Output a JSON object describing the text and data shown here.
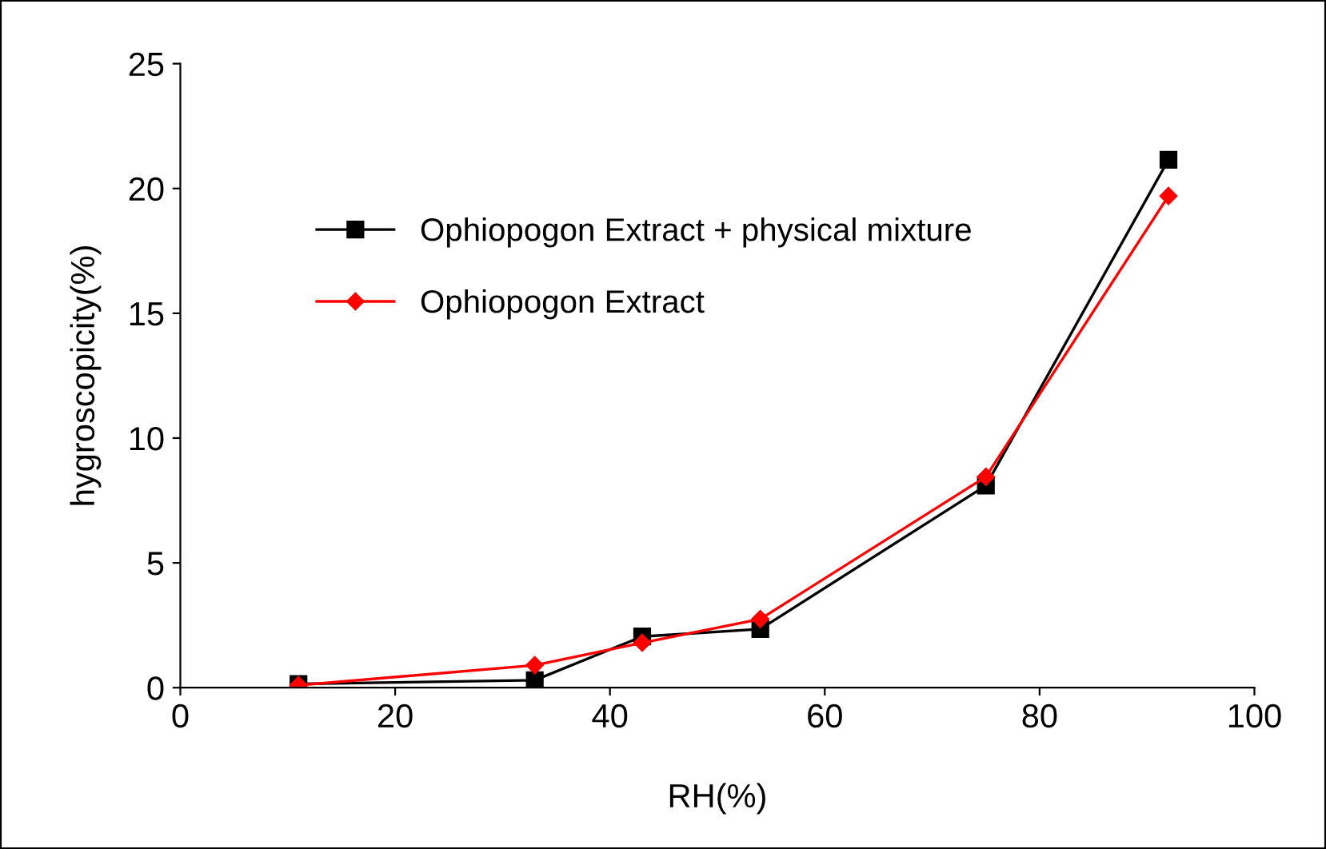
{
  "chart_data": {
    "type": "line",
    "xlabel": "RH(%)",
    "ylabel": "hygroscopicity(%)",
    "x": [
      11,
      33,
      43,
      54,
      75,
      92
    ],
    "series": [
      {
        "name": "Ophiopogon Extract + physical mixture",
        "color": "#000000",
        "marker": "square",
        "values": [
          0.15,
          0.3,
          2.05,
          2.35,
          8.1,
          21.15
        ]
      },
      {
        "name": "Ophiopogon Extract",
        "color": "#ff0000",
        "marker": "diamond",
        "values": [
          0.1,
          0.9,
          1.8,
          2.75,
          8.45,
          19.7
        ]
      }
    ],
    "xlim": [
      0,
      100
    ],
    "xticks": [
      0,
      20,
      40,
      60,
      80,
      100
    ],
    "ylim": [
      0,
      25
    ],
    "yticks": [
      0,
      5,
      10,
      15,
      20,
      25
    ],
    "grid": false,
    "legend": "upper left",
    "line_style": "solid"
  }
}
